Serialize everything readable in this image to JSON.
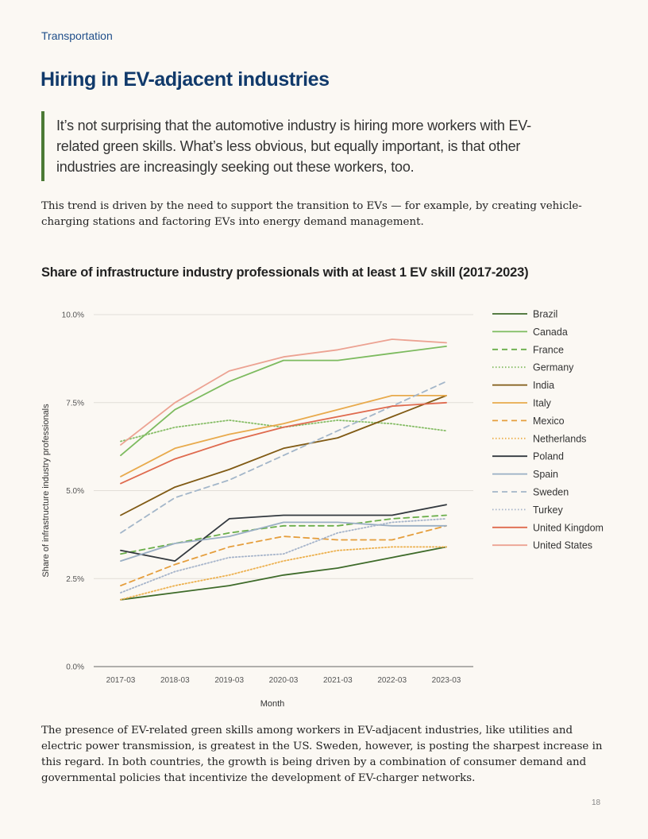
{
  "section_label": "Transportation",
  "heading": "Hiring in EV-adjacent industries",
  "pull_quote": "It’s not surprising that the automotive industry is hiring more workers with EV-related green skills. What’s less obvious, but equally important, is that other industries are increasingly seeking out these workers, too.",
  "intro_paragraph": "This trend is driven by the need to support the transition to EVs — for example, by creating vehicle-charging stations and factoring EVs into energy demand management.",
  "outro_paragraph": "The presence of EV-related green skills among workers in EV-adjacent industries, like utilities and electric power transmission, is greatest in the US. Sweden, however, is posting the sharpest increase in this regard. In both countries, the growth is being driven by a combination of consumer demand and governmental policies that incentivize the development of EV-charger networks.",
  "page_number": "18",
  "chart_data": {
    "type": "line",
    "title": "Share of infrastructure industry professionals with at least 1 EV skill (2017-2023)",
    "xlabel": "Month",
    "ylabel": "Share of infrastructure industry professionals",
    "categories": [
      "2017-03",
      "2018-03",
      "2019-03",
      "2020-03",
      "2021-03",
      "2022-03",
      "2023-03"
    ],
    "yticks": [
      "0.0%",
      "2.5%",
      "5.0%",
      "7.5%",
      "10.0%"
    ],
    "ylim": [
      0,
      10
    ],
    "grid": true,
    "legend": "right",
    "series": [
      {
        "name": "Brazil",
        "color": "#3e6b2a",
        "dash": "solid",
        "values": [
          1.9,
          2.1,
          2.3,
          2.6,
          2.8,
          3.1,
          3.4
        ]
      },
      {
        "name": "Canada",
        "color": "#7dbb5f",
        "dash": "solid",
        "values": [
          6.0,
          7.3,
          8.1,
          8.7,
          8.7,
          8.9,
          9.1
        ]
      },
      {
        "name": "France",
        "color": "#6aae4a",
        "dash": "dashed",
        "values": [
          3.2,
          3.5,
          3.8,
          4.0,
          4.0,
          4.2,
          4.3
        ]
      },
      {
        "name": "Germany",
        "color": "#86bd66",
        "dash": "dotted",
        "values": [
          6.4,
          6.8,
          7.0,
          6.8,
          7.0,
          6.9,
          6.7
        ]
      },
      {
        "name": "India",
        "color": "#805a14",
        "dash": "solid",
        "values": [
          4.3,
          5.1,
          5.6,
          6.2,
          6.5,
          7.1,
          7.7
        ]
      },
      {
        "name": "Italy",
        "color": "#e8aa4c",
        "dash": "solid",
        "values": [
          5.4,
          6.2,
          6.6,
          6.9,
          7.3,
          7.7,
          7.7
        ]
      },
      {
        "name": "Mexico",
        "color": "#e59e3d",
        "dash": "dashed",
        "values": [
          2.3,
          2.9,
          3.4,
          3.7,
          3.6,
          3.6,
          4.0
        ]
      },
      {
        "name": "Netherlands",
        "color": "#ecb04e",
        "dash": "dotted",
        "values": [
          1.9,
          2.3,
          2.6,
          3.0,
          3.3,
          3.4,
          3.4
        ]
      },
      {
        "name": "Poland",
        "color": "#33393f",
        "dash": "solid",
        "values": [
          3.3,
          3.0,
          4.2,
          4.3,
          4.3,
          4.3,
          4.6
        ]
      },
      {
        "name": "Spain",
        "color": "#9aafc4",
        "dash": "solid",
        "values": [
          3.0,
          3.5,
          3.7,
          4.1,
          4.1,
          4.0,
          4.0
        ]
      },
      {
        "name": "Sweden",
        "color": "#a3b6c9",
        "dash": "dashed",
        "values": [
          3.8,
          4.8,
          5.3,
          6.0,
          6.7,
          7.4,
          8.1
        ]
      },
      {
        "name": "Turkey",
        "color": "#a6b4ca",
        "dash": "dotted",
        "values": [
          2.1,
          2.7,
          3.1,
          3.2,
          3.8,
          4.1,
          4.2
        ]
      },
      {
        "name": "United Kingdom",
        "color": "#df6a4e",
        "dash": "solid",
        "values": [
          5.2,
          5.9,
          6.4,
          6.8,
          7.1,
          7.4,
          7.5
        ]
      },
      {
        "name": "United States",
        "color": "#eca292",
        "dash": "solid",
        "values": [
          6.3,
          7.5,
          8.4,
          8.8,
          9.0,
          9.3,
          9.2
        ]
      }
    ]
  }
}
